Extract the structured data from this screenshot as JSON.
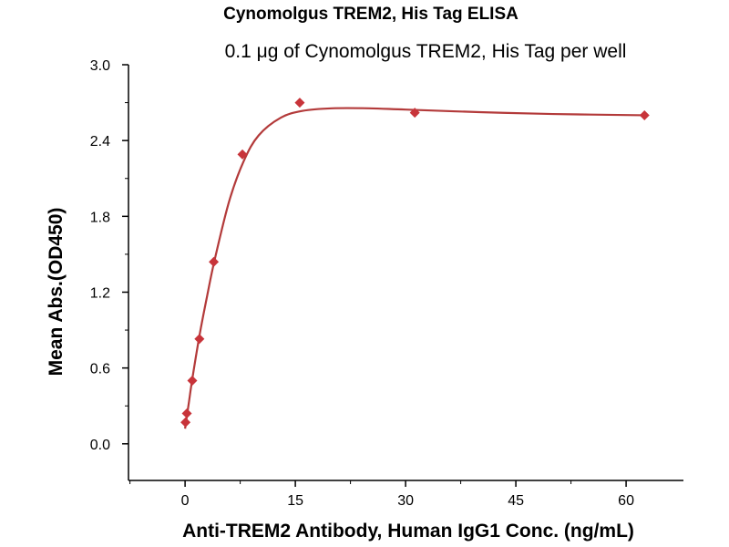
{
  "chart_data": {
    "type": "scatter",
    "title": "Cynomolgus TREM2, His Tag ELISA",
    "subtitle": "0.1 μg of Cynomolgus TREM2, His Tag per well",
    "xlabel": "Anti-TREM2 Antibody, Human IgG1 Conc. (ng/mL)",
    "ylabel": "Mean Abs.(OD450)",
    "xlim": [
      -7.7,
      67.8
    ],
    "ylim": [
      -0.29,
      3.0
    ],
    "xticks": [
      "0",
      "15",
      "30",
      "45",
      "60"
    ],
    "xtick_values": [
      0,
      15,
      30,
      45,
      60
    ],
    "yticks": [
      "0.0",
      "0.6",
      "1.2",
      "1.8",
      "2.4",
      "3.0"
    ],
    "ytick_values": [
      0,
      0.6,
      1.2,
      1.8,
      2.4,
      3.0
    ],
    "grid": false,
    "series": [
      {
        "name": "Mean Abs.",
        "x": [
          0.06,
          0.24,
          0.98,
          1.95,
          3.9,
          7.8,
          15.6,
          31.25,
          62.5
        ],
        "y": [
          0.17,
          0.24,
          0.5,
          0.83,
          1.44,
          2.29,
          2.7,
          2.62,
          2.6
        ],
        "color": "#c8343a",
        "marker": "diamond"
      }
    ],
    "fit_curve": {
      "color": "#b33a3a",
      "x": [
        0,
        0.5,
        1,
        2,
        3,
        4,
        6,
        8,
        10,
        13,
        16,
        20,
        25,
        30,
        40,
        50,
        62.5
      ],
      "y": [
        0.12,
        0.32,
        0.52,
        0.87,
        1.17,
        1.45,
        1.92,
        2.24,
        2.44,
        2.58,
        2.635,
        2.655,
        2.655,
        2.645,
        2.625,
        2.61,
        2.6
      ]
    }
  }
}
